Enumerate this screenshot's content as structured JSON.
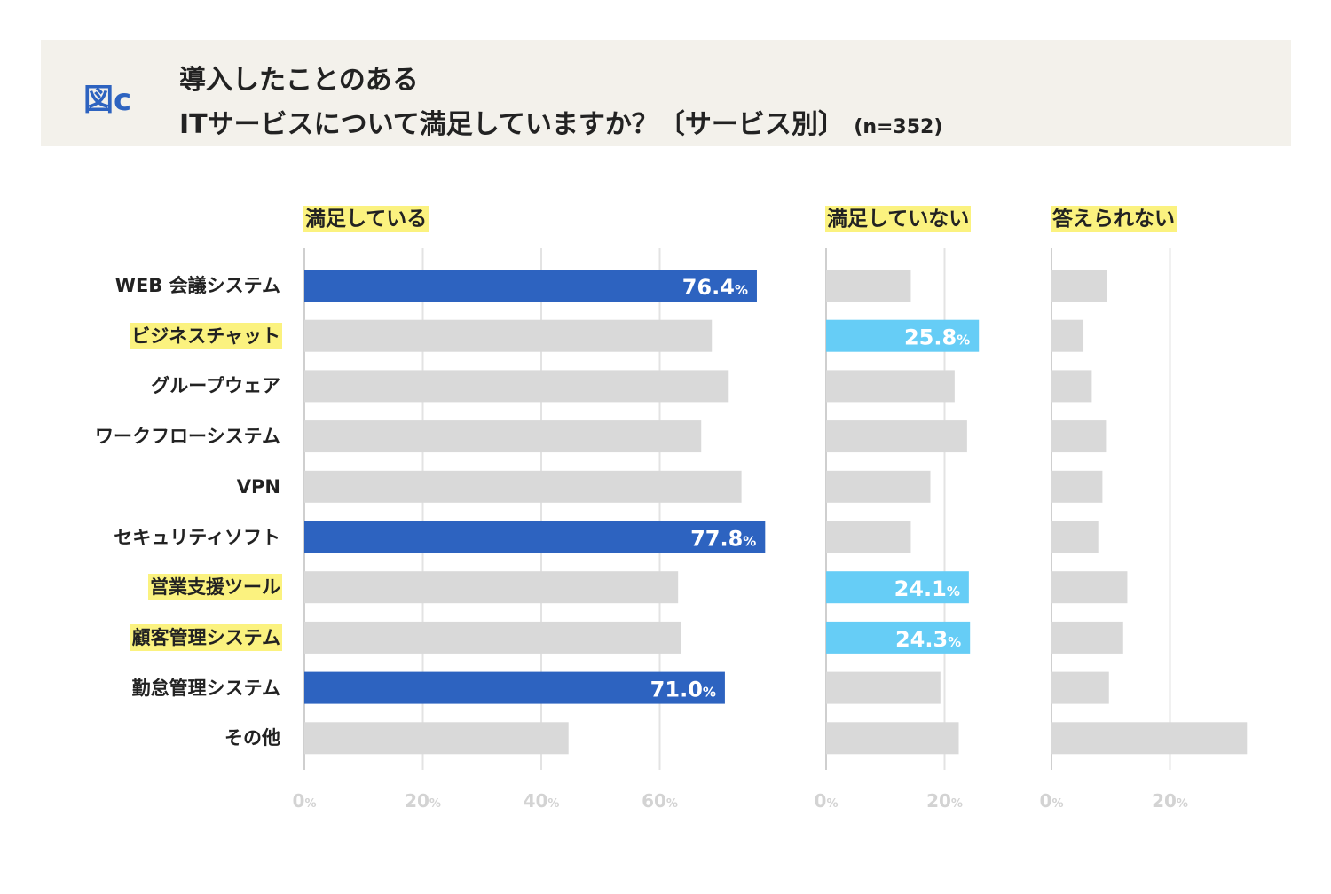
{
  "figure_label": "図c",
  "title_line1": "導入したことのある",
  "title_line2": "ITサービスについて満足していますか？〔サービス別〕",
  "sample_size": "(n=352)",
  "chart_data": {
    "type": "bar",
    "orientation": "horizontal",
    "categories": [
      "WEB 会議システム",
      "ビジネスチャット",
      "グループウェア",
      "ワークフローシステム",
      "VPN",
      "セキュリティソフト",
      "営業支援ツール",
      "顧客管理システム",
      "勤怠管理システム",
      "その他"
    ],
    "highlighted_categories": [
      "ビジネスチャット",
      "営業支援ツール",
      "顧客管理システム"
    ],
    "unit_suffix": "%",
    "panels": [
      {
        "name": "満足している",
        "xlim": [
          0,
          80
        ],
        "ticks": [
          0,
          20,
          40,
          60
        ],
        "values": [
          76.4,
          68.8,
          71.5,
          67.0,
          73.8,
          77.8,
          63.1,
          63.6,
          71.0,
          44.6
        ],
        "labels": [
          "76.4",
          "",
          "",
          "",
          "",
          "77.8",
          "",
          "",
          "71.0",
          ""
        ],
        "highlight_color": "#2d63c0",
        "base_color": "#d9d9d9"
      },
      {
        "name": "満足していない",
        "xlim": [
          0,
          30
        ],
        "ticks": [
          0,
          20
        ],
        "values": [
          14.3,
          25.8,
          21.7,
          23.8,
          17.6,
          14.3,
          24.1,
          24.3,
          19.3,
          22.4
        ],
        "labels": [
          "",
          "25.8",
          "",
          "",
          "",
          "",
          "24.1",
          "24.3",
          "",
          ""
        ],
        "highlight_color": "#66cdf6",
        "base_color": "#d9d9d9"
      },
      {
        "name": "答えられない",
        "xlim": [
          0,
          35
        ],
        "ticks": [
          0,
          20
        ],
        "values": [
          9.4,
          5.4,
          6.8,
          9.2,
          8.6,
          7.9,
          12.8,
          12.1,
          9.7,
          33.0
        ],
        "labels": [
          "",
          "",
          "",
          "",
          "",
          "",
          "",
          "",
          "",
          ""
        ],
        "highlight_color": "#2d63c0",
        "base_color": "#d9d9d9"
      }
    ]
  }
}
